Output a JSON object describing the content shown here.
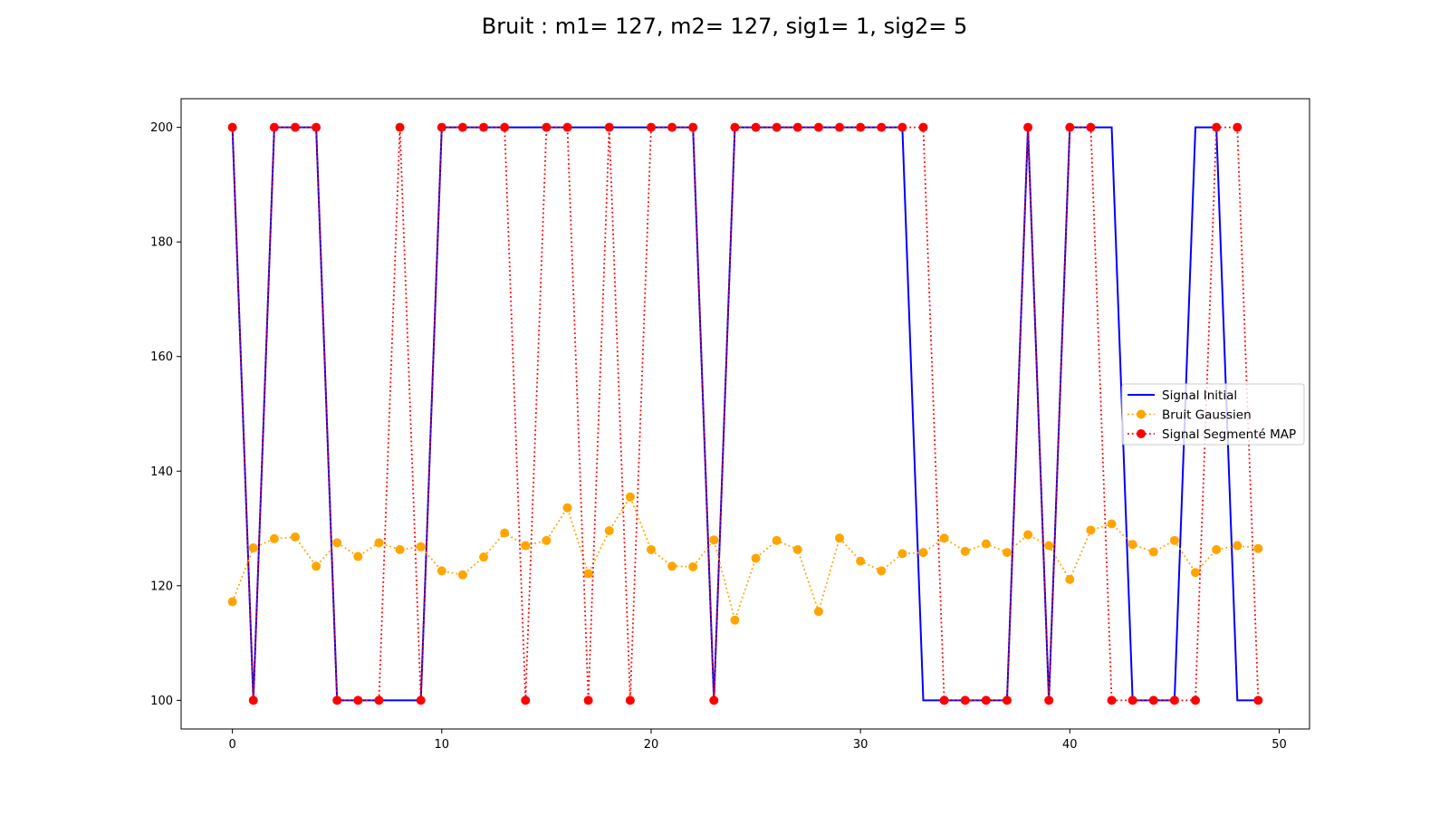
{
  "chart_data": {
    "type": "line",
    "title": "Bruit : m1= 127, m2= 127, sig1= 1, sig2= 5",
    "xlabel": "",
    "ylabel": "",
    "xlim": [
      -2.45,
      51.45
    ],
    "ylim": [
      95,
      205
    ],
    "xticks": [
      0,
      10,
      20,
      30,
      40,
      50
    ],
    "yticks": [
      100,
      120,
      140,
      160,
      180,
      200
    ],
    "grid": false,
    "legend_position": "center-right",
    "x": [
      0,
      1,
      2,
      3,
      4,
      5,
      6,
      7,
      8,
      9,
      10,
      11,
      12,
      13,
      14,
      15,
      16,
      17,
      18,
      19,
      20,
      21,
      22,
      23,
      24,
      25,
      26,
      27,
      28,
      29,
      30,
      31,
      32,
      33,
      34,
      35,
      36,
      37,
      38,
      39,
      40,
      41,
      42,
      43,
      44,
      45,
      46,
      47,
      48,
      49
    ],
    "series": [
      {
        "name": "Signal Initial",
        "style": "solid",
        "marker": "none",
        "color": "#0000ff",
        "values": [
          200,
          100,
          200,
          200,
          200,
          100,
          100,
          100,
          100,
          100,
          200,
          200,
          200,
          200,
          200,
          200,
          200,
          200,
          200,
          200,
          200,
          200,
          200,
          100,
          200,
          200,
          200,
          200,
          200,
          200,
          200,
          200,
          200,
          100,
          100,
          100,
          100,
          100,
          200,
          100,
          200,
          200,
          200,
          100,
          100,
          100,
          200,
          200,
          100,
          100
        ]
      },
      {
        "name": "Bruit Gaussien",
        "style": "dotted",
        "marker": "circle",
        "color": "#ffa500",
        "values": [
          117.2,
          126.6,
          128.2,
          128.5,
          123.4,
          127.5,
          125.1,
          127.5,
          126.3,
          126.8,
          122.6,
          121.9,
          125.0,
          129.2,
          127.0,
          127.9,
          133.6,
          122.1,
          129.6,
          135.5,
          126.3,
          123.4,
          123.3,
          128.0,
          114.0,
          124.8,
          127.9,
          126.3,
          115.5,
          128.3,
          124.3,
          122.6,
          125.6,
          125.8,
          128.3,
          126.0,
          127.3,
          125.8,
          128.9,
          127.0,
          121.1,
          129.7,
          130.8,
          127.2,
          125.9,
          127.9,
          122.3,
          126.3,
          127.0,
          126.5
        ]
      },
      {
        "name": "Signal Segmenté MAP",
        "style": "dotted",
        "marker": "circle",
        "color": "#ff0000",
        "values": [
          200,
          100,
          200,
          200,
          200,
          100,
          100,
          100,
          200,
          100,
          200,
          200,
          200,
          200,
          100,
          200,
          200,
          100,
          200,
          100,
          200,
          200,
          200,
          100,
          200,
          200,
          200,
          200,
          200,
          200,
          200,
          200,
          200,
          200,
          100,
          100,
          100,
          100,
          200,
          100,
          200,
          200,
          100,
          100,
          100,
          100,
          100,
          200,
          200,
          100
        ]
      }
    ]
  }
}
